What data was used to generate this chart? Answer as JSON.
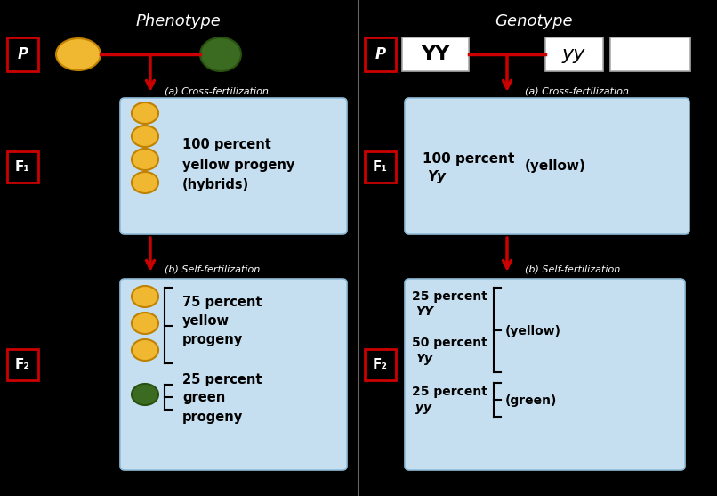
{
  "bg_color": "#000000",
  "panel_bg": "#c5dff0",
  "panel_edge": "#90bcd8",
  "left_title": "Phenotype",
  "right_title": "Genotype",
  "arrow_color": "#cc0000",
  "yellow_color": "#f0b830",
  "yellow_edge": "#c08000",
  "green_color": "#3a6b20",
  "green_edge": "#2a5010",
  "text_color": "#000000",
  "white_color": "#ffffff",
  "p_label": "P",
  "f1_label": "F₁",
  "f2_label": "F₂"
}
